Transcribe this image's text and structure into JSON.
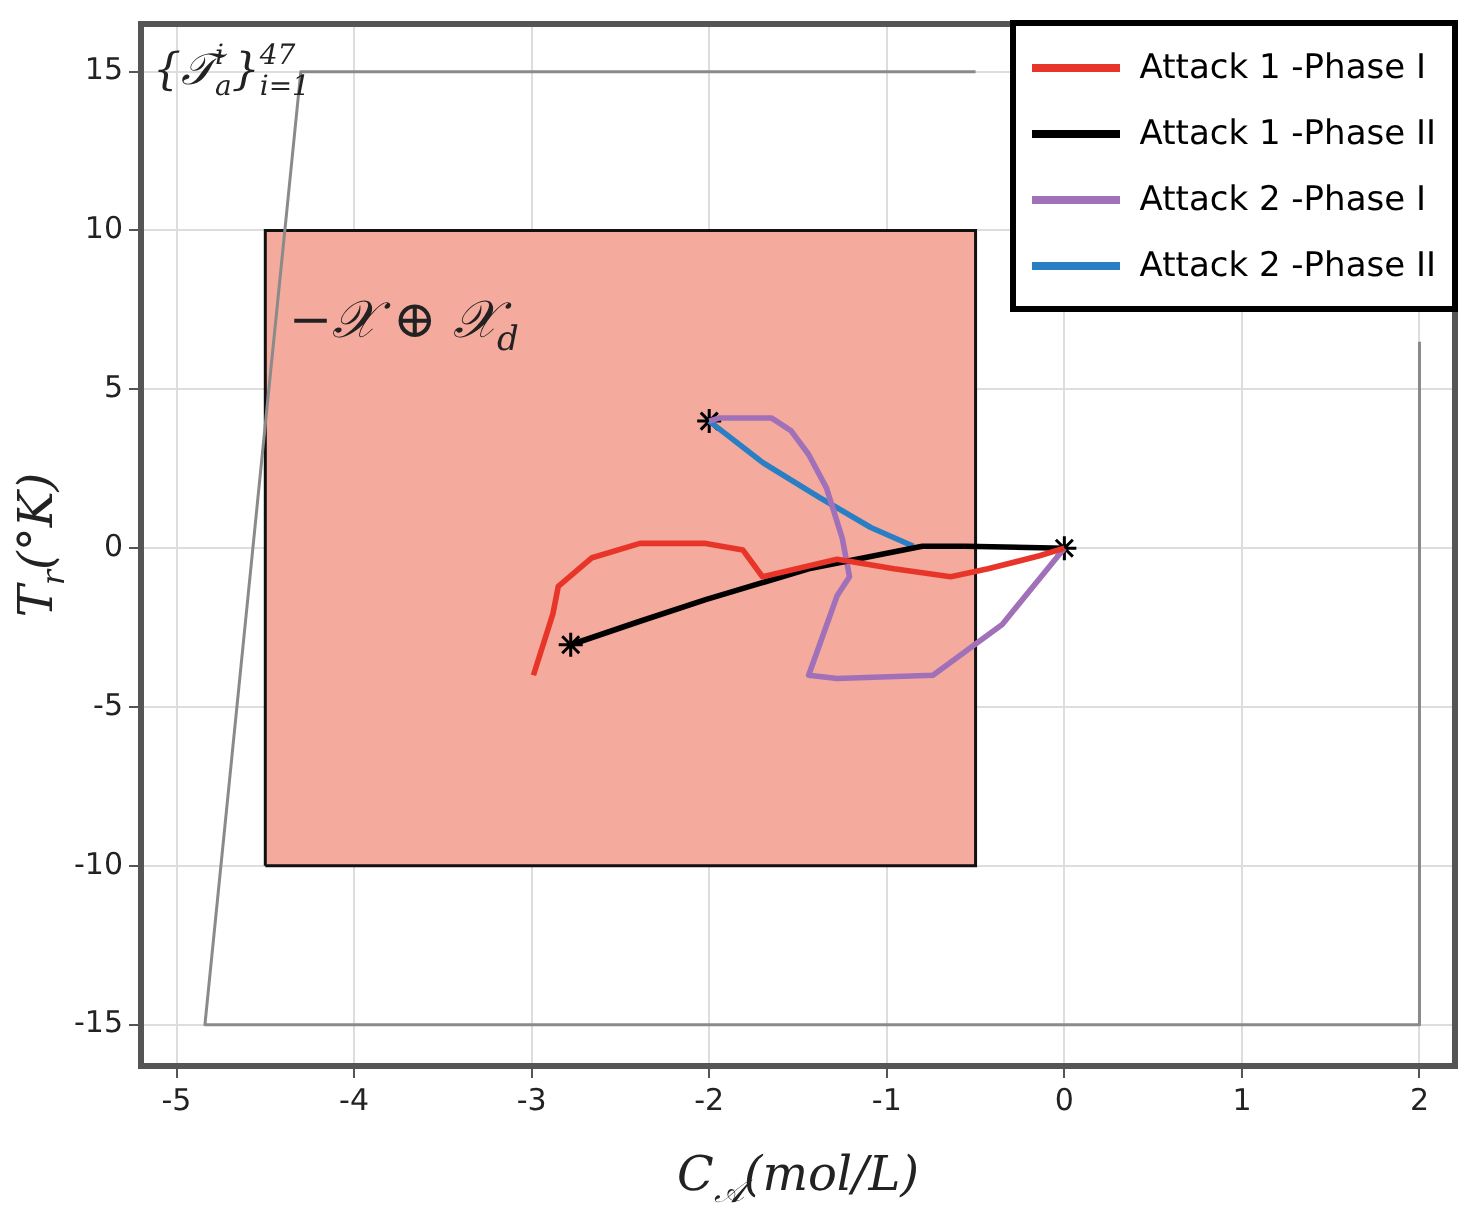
{
  "chart_data": {
    "type": "line",
    "xlabel": "C$_{𝒜}$(mol/L)",
    "ylabel": "T$_{r}$(°K)",
    "xlim": [
      -5.2,
      2.2
    ],
    "ylim": [
      -16.3,
      16.5
    ],
    "xticks": [
      -5,
      -4,
      -3,
      -2,
      -1,
      0,
      1,
      2
    ],
    "yticks": [
      -15,
      -10,
      -5,
      0,
      5,
      10,
      15
    ],
    "grid": true,
    "legend": "top right",
    "marker": "none",
    "line_style": "solid",
    "annotations": [
      "{𝒯$_{a}$$^{i}$}$_{i=1}$$^{47}$",
      "−𝒳 ⊕ 𝒳$_{d}$"
    ],
    "series": [
      {
        "type": "area",
        "color": "#f4aa9d",
        "x": [
          -4.5,
          -4.5,
          -0.5,
          -0.5,
          -4.5
        ],
        "values": [
          -10,
          10,
          10,
          -10,
          -10
        ]
      },
      {
        "type": "line",
        "color": "#8a8a8a",
        "x": [
          -0.5,
          -4.3,
          -4.84,
          2,
          2
        ],
        "values": [
          15,
          15,
          -15,
          -15,
          6.5
        ]
      },
      {
        "name": "Attack 1 -Phase I",
        "color": "#e8352a",
        "x": [
          0,
          -0.14,
          -0.43,
          -0.64,
          -0.96,
          -1.28,
          -1.7,
          -1.81,
          -2.02,
          -2.39,
          -2.66,
          -2.85,
          -2.88,
          -2.99
        ],
        "values": [
          0,
          -0.24,
          -0.65,
          -0.9,
          -0.65,
          -0.35,
          -0.9,
          -0.06,
          0.15,
          0.15,
          -0.3,
          -1.2,
          -2.06,
          -4
        ]
      },
      {
        "name": "Attack 1 -Phase II",
        "color": "#000000",
        "x": [
          -2.78,
          -2.39,
          -2.02,
          -1.44,
          -0.8,
          -0.56,
          0
        ],
        "values": [
          -3.04,
          -2.3,
          -1.62,
          -0.65,
          0.06,
          0.06,
          0
        ]
      },
      {
        "name": "Attack 2 -Phase I",
        "color": "#a070b8",
        "x": [
          0,
          -0.35,
          -0.74,
          -1.28,
          -1.44,
          -1.28,
          -1.21,
          -1.25,
          -1.34,
          -1.44,
          -1.54,
          -1.65,
          -1.94,
          -2
        ],
        "values": [
          0,
          -2.4,
          -4,
          -4.1,
          -4,
          -1.5,
          -0.9,
          0.3,
          1.9,
          2.95,
          3.7,
          4.1,
          4.1,
          4
        ]
      },
      {
        "name": "Attack 2 -Phase II",
        "color": "#2a7fc4",
        "x": [
          -2,
          -1.7,
          -1.38,
          -1.09,
          -0.85
        ],
        "values": [
          4,
          2.7,
          1.6,
          0.65,
          0.06
        ]
      },
      {
        "type": "scatter",
        "color": "#000000",
        "marker": "cross",
        "x": [
          0,
          -2.78,
          -2
        ],
        "values": [
          0,
          -3.04,
          4
        ]
      }
    ]
  }
}
